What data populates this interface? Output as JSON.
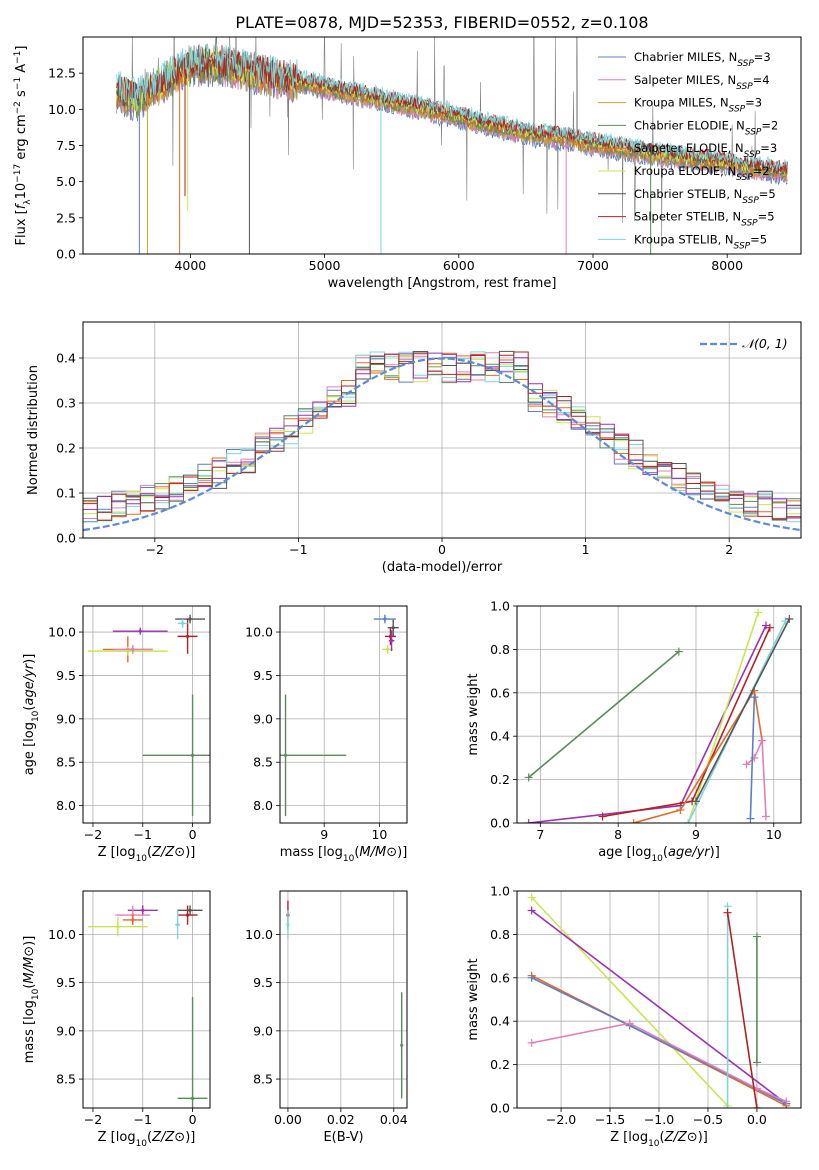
{
  "chart_data": [
    {
      "type": "line",
      "title": "PLATE=0878, MJD=52353, FIBERID=0552, z=0.108",
      "xlabel": "wavelength [Angstrom, rest frame]",
      "ylabel": "Flux [fλ10⁻¹⁷ erg cm⁻² s⁻¹ A⁻¹]",
      "xlim": [
        3200,
        8550
      ],
      "ylim": [
        0,
        15
      ],
      "xticks": [
        "4000",
        "5000",
        "6000",
        "7000",
        "8000"
      ],
      "yticks": [
        "0.0",
        "2.5",
        "5.0",
        "7.5",
        "10.0",
        "12.5"
      ],
      "continuum_points": [
        [
          3450,
          11.2
        ],
        [
          3600,
          10.6
        ],
        [
          3750,
          11.6
        ],
        [
          3900,
          12.4
        ],
        [
          4000,
          13.0
        ],
        [
          4100,
          13.0
        ],
        [
          4200,
          13.1
        ],
        [
          4400,
          12.7
        ],
        [
          4600,
          12.2
        ],
        [
          4800,
          11.9
        ],
        [
          5000,
          11.5
        ],
        [
          5200,
          11.1
        ],
        [
          5400,
          10.7
        ],
        [
          5600,
          10.3
        ],
        [
          5800,
          9.9
        ],
        [
          6000,
          9.5
        ],
        [
          6200,
          9.0
        ],
        [
          6400,
          8.6
        ],
        [
          6600,
          8.2
        ],
        [
          6800,
          8.0
        ],
        [
          7000,
          7.6
        ],
        [
          7200,
          7.3
        ],
        [
          7400,
          7.0
        ],
        [
          7600,
          6.7
        ],
        [
          7800,
          6.5
        ],
        [
          8000,
          6.3
        ],
        [
          8200,
          5.9
        ],
        [
          8400,
          5.7
        ]
      ],
      "series": [
        {
          "name": "Chabrier MILES, N_SSP=3",
          "color": "#5b7fc4"
        },
        {
          "name": "Salpeter MILES, N_SSP=4",
          "color": "#e27fb7"
        },
        {
          "name": "Kroupa MILES, N_SSP=3",
          "color": "#c9a227"
        },
        {
          "name": "Chabrier ELODIE, N_SSP=2",
          "color": "#5b8a5b"
        },
        {
          "name": "Salpeter ELODIE, N_SSP=3",
          "color": "#e06a2a"
        },
        {
          "name": "Kroupa ELODIE, N_SSP=2",
          "color": "#c8e650"
        },
        {
          "name": "Chabrier STELIB, N_SSP=5",
          "color": "#555555"
        },
        {
          "name": "Salpeter STELIB, N_SSP=5",
          "color": "#b22222"
        },
        {
          "name": "Kroupa STELIB, N_SSP=5",
          "color": "#7dd6dc"
        }
      ],
      "legend": [
        {
          "pre": "Chabrier MILES, N",
          "sub": "SSP",
          "post": "=3",
          "color": "#5b7fc4"
        },
        {
          "pre": "Salpeter MILES, N",
          "sub": "SSP",
          "post": "=4",
          "color": "#e27fb7"
        },
        {
          "pre": "Kroupa MILES, N",
          "sub": "SSP",
          "post": "=3",
          "color": "#c9a227"
        },
        {
          "pre": "Chabrier ELODIE, N",
          "sub": "SSP",
          "post": "=2",
          "color": "#5b8a5b"
        },
        {
          "pre": "Salpeter ELODIE, N",
          "sub": "SSP",
          "post": "=3",
          "color": "#e06a2a"
        },
        {
          "pre": "Kroupa ELODIE, N",
          "sub": "SSP",
          "post": "=2",
          "color": "#c8e650"
        },
        {
          "pre": "Chabrier STELIB, N",
          "sub": "SSP",
          "post": "=5",
          "color": "#555555"
        },
        {
          "pre": "Salpeter STELIB, N",
          "sub": "SSP",
          "post": "=5",
          "color": "#b22222"
        },
        {
          "pre": "Kroupa STELIB, N",
          "sub": "SSP",
          "post": "=5",
          "color": "#7dd6dc"
        }
      ],
      "legend_position": "upper right"
    },
    {
      "type": "line",
      "xlabel": "(data-model)/error",
      "ylabel": "Normed distribution",
      "xlim": [
        -2.5,
        2.5
      ],
      "ylim": [
        0,
        0.48
      ],
      "xticks": [
        "−2",
        "−1",
        "0",
        "1",
        "2"
      ],
      "yticks": [
        "0.0",
        "0.1",
        "0.2",
        "0.3",
        "0.4"
      ],
      "grid": true,
      "gaussian_label": "𝒩(0, 1)",
      "gaussian_color": "#5b8bd9",
      "legend_position": "upper right",
      "hist_colors": [
        "#5b7fc4",
        "#e27fb7",
        "#e06a2a",
        "#5b8a5b",
        "#c8e650",
        "#7dd6dc",
        "#9b30b5",
        "#b22222",
        "#555555"
      ]
    },
    {
      "type": "scatter",
      "xlabel": "Z [log10(Z/Z⊙)]",
      "ylabel": "age [log10(age/yr)]",
      "xlim": [
        -2.2,
        0.35
      ],
      "ylim": [
        7.8,
        10.3
      ],
      "xticks": [
        "−2",
        "−1",
        "0"
      ],
      "yticks": [
        "8.0",
        "8.5",
        "9.0",
        "9.5",
        "10.0"
      ],
      "grid": true,
      "points": [
        {
          "x": -1.05,
          "y": 10.01,
          "xerr": 0.55,
          "yerr": 0.04,
          "color": "#9b30b5"
        },
        {
          "x": -1.3,
          "y": 9.8,
          "xerr": 0.5,
          "yerr": 0.15,
          "color": "#e06a2a"
        },
        {
          "x": -1.3,
          "y": 9.78,
          "xerr": 0.8,
          "yerr": 0.05,
          "color": "#c8e650"
        },
        {
          "x": -1.2,
          "y": 9.8,
          "xerr": 0.4,
          "yerr": 0.05,
          "color": "#e27fb7"
        },
        {
          "x": -0.05,
          "y": 10.15,
          "xerr": 0.3,
          "yerr": 0.05,
          "color": "#555555"
        },
        {
          "x": -0.1,
          "y": 9.95,
          "xerr": 0.2,
          "yerr": 0.2,
          "color": "#b22222"
        },
        {
          "x": -0.2,
          "y": 10.1,
          "xerr": 0.1,
          "yerr": 0.05,
          "color": "#7dd6dc"
        },
        {
          "x": 0.0,
          "y": 8.58,
          "xerr": 1.0,
          "yerr": 0.7,
          "color": "#5b8a5b"
        }
      ]
    },
    {
      "type": "scatter",
      "xlabel": "mass [log10(M/M⊙)]",
      "xlim": [
        8.2,
        10.5
      ],
      "ylim": [
        7.8,
        10.3
      ],
      "xticks": [
        "9",
        "10"
      ],
      "yticks": [
        "8.0",
        "8.5",
        "9.0",
        "9.5",
        "10.0"
      ],
      "grid": true,
      "points": [
        {
          "x": 10.25,
          "y": 10.05,
          "xerr": 0.1,
          "yerr": 0.1,
          "color": "#555555"
        },
        {
          "x": 10.2,
          "y": 9.95,
          "xerr": 0.1,
          "yerr": 0.1,
          "color": "#b22222"
        },
        {
          "x": 10.15,
          "y": 9.8,
          "xerr": 0.1,
          "yerr": 0.05,
          "color": "#c8e650"
        },
        {
          "x": 10.22,
          "y": 9.9,
          "xerr": 0.05,
          "yerr": 0.12,
          "color": "#9b30b5"
        },
        {
          "x": 10.1,
          "y": 10.15,
          "xerr": 0.2,
          "yerr": 0.05,
          "color": "#5b7fc4"
        },
        {
          "x": 8.3,
          "y": 8.58,
          "xerr": 1.1,
          "yerr": 0.7,
          "color": "#5b8a5b"
        }
      ]
    },
    {
      "type": "line",
      "xlabel": "age [log10(age/yr)]",
      "ylabel": "mass weight",
      "xlim": [
        6.7,
        10.35
      ],
      "ylim": [
        0,
        1
      ],
      "xticks": [
        "7",
        "8",
        "9",
        "10"
      ],
      "yticks": [
        "0.0",
        "0.2",
        "0.4",
        "0.6",
        "0.8",
        "1.0"
      ],
      "grid": true,
      "series": [
        {
          "color": "#5b8a5b",
          "points": [
            [
              6.85,
              0.21
            ],
            [
              8.78,
              0.79
            ]
          ]
        },
        {
          "color": "#9b30b5",
          "points": [
            [
              6.85,
              0.0
            ],
            [
              8.8,
              0.08
            ],
            [
              9.9,
              0.91
            ]
          ]
        },
        {
          "color": "#c8e650",
          "points": [
            [
              8.9,
              0.0
            ],
            [
              9.8,
              0.97
            ]
          ]
        },
        {
          "color": "#b22222",
          "points": [
            [
              7.8,
              0.03
            ],
            [
              8.95,
              0.1
            ],
            [
              9.95,
              0.9
            ]
          ]
        },
        {
          "color": "#e06a2a",
          "points": [
            [
              8.2,
              0.0
            ],
            [
              8.8,
              0.06
            ],
            [
              9.75,
              0.61
            ],
            [
              9.85,
              0.38
            ]
          ]
        },
        {
          "color": "#e27fb7",
          "points": [
            [
              9.65,
              0.27
            ],
            [
              9.75,
              0.3
            ],
            [
              9.85,
              0.38
            ],
            [
              9.9,
              0.03
            ]
          ]
        },
        {
          "color": "#5b7fc4",
          "points": [
            [
              9.75,
              0.58
            ],
            [
              9.7,
              0.02
            ]
          ]
        },
        {
          "color": "#7dd6dc",
          "points": [
            [
              8.9,
              0.0
            ],
            [
              10.15,
              0.93
            ]
          ]
        },
        {
          "color": "#555555",
          "points": [
            [
              9.0,
              0.1
            ],
            [
              10.2,
              0.94
            ]
          ]
        }
      ]
    },
    {
      "type": "scatter",
      "xlabel": "Z [log10(Z/Z⊙)]",
      "ylabel": "mass [log10(M/M⊙)]",
      "xlim": [
        -2.2,
        0.35
      ],
      "ylim": [
        8.2,
        10.45
      ],
      "xticks": [
        "−2",
        "−1",
        "0"
      ],
      "yticks": [
        "8.5",
        "9.0",
        "9.5",
        "10.0"
      ],
      "grid": true,
      "points": [
        {
          "x": -1.0,
          "y": 10.25,
          "xerr": 0.3,
          "yerr": 0.05,
          "color": "#9b30b5"
        },
        {
          "x": -1.2,
          "y": 10.2,
          "xerr": 0.35,
          "yerr": 0.1,
          "color": "#e27fb7"
        },
        {
          "x": -1.5,
          "y": 10.08,
          "xerr": 0.6,
          "yerr": 0.1,
          "color": "#c8e650"
        },
        {
          "x": -1.2,
          "y": 10.15,
          "xerr": 0.2,
          "yerr": 0.05,
          "color": "#e06a2a"
        },
        {
          "x": -0.05,
          "y": 10.25,
          "xerr": 0.25,
          "yerr": 0.05,
          "color": "#555555"
        },
        {
          "x": -0.1,
          "y": 10.2,
          "xerr": 0.2,
          "yerr": 0.1,
          "color": "#b22222"
        },
        {
          "x": -0.3,
          "y": 10.1,
          "xerr": 0.05,
          "yerr": 0.15,
          "color": "#7dd6dc"
        },
        {
          "x": 0.0,
          "y": 8.3,
          "xerr": 0.3,
          "yerr": 1.05,
          "color": "#5b8a5b"
        }
      ]
    },
    {
      "type": "scatter",
      "xlabel": "E(B-V)",
      "xlim": [
        -0.003,
        0.045
      ],
      "ylim": [
        8.2,
        10.45
      ],
      "xticks": [
        "0.00",
        "0.02",
        "0.04"
      ],
      "yticks": [
        "8.5",
        "9.0",
        "9.5",
        "10.0"
      ],
      "grid": true,
      "points": [
        {
          "x": 0.0,
          "y": 10.2,
          "xerr": 0.0,
          "yerr": 0.15,
          "color": "#b22222"
        },
        {
          "x": 0.0,
          "y": 10.1,
          "xerr": 0.0,
          "yerr": 0.15,
          "color": "#7dd6dc"
        },
        {
          "x": 0.043,
          "y": 8.85,
          "xerr": 0.0,
          "yerr": 0.55,
          "color": "#5b8a5b"
        }
      ]
    },
    {
      "type": "line",
      "xlabel": "Z [log10(Z/Z⊙)]",
      "ylabel": "mass weight",
      "xlim": [
        -2.45,
        0.45
      ],
      "ylim": [
        0,
        1
      ],
      "xticks": [
        "−2.0",
        "−1.5",
        "−1.0",
        "−0.5",
        "0.0"
      ],
      "yticks": [
        "0.0",
        "0.2",
        "0.4",
        "0.6",
        "0.8",
        "1.0"
      ],
      "grid": true,
      "series": [
        {
          "color": "#c8e650",
          "points": [
            [
              -2.3,
              0.97
            ],
            [
              -0.3,
              0.01
            ]
          ]
        },
        {
          "color": "#9b30b5",
          "points": [
            [
              -2.3,
              0.91
            ],
            [
              0.3,
              0.02
            ]
          ]
        },
        {
          "color": "#e06a2a",
          "points": [
            [
              -2.3,
              0.61
            ],
            [
              -1.3,
              0.38
            ],
            [
              0.3,
              0.01
            ]
          ]
        },
        {
          "color": "#5b7fc4",
          "points": [
            [
              -2.3,
              0.6
            ],
            [
              -1.3,
              0.38
            ],
            [
              0.3,
              0.02
            ]
          ]
        },
        {
          "color": "#e27fb7",
          "points": [
            [
              -2.3,
              0.3
            ],
            [
              -1.3,
              0.39
            ],
            [
              0.0,
              0.09
            ],
            [
              0.3,
              0.03
            ]
          ]
        },
        {
          "color": "#7dd6dc",
          "points": [
            [
              -0.3,
              0.93
            ],
            [
              -0.3,
              0.0
            ]
          ]
        },
        {
          "color": "#5b8a5b",
          "points": [
            [
              0.0,
              0.79
            ],
            [
              0.0,
              0.21
            ]
          ]
        },
        {
          "color": "#b22222",
          "points": [
            [
              -0.3,
              0.9
            ],
            [
              0.0,
              0.0
            ]
          ]
        }
      ]
    }
  ]
}
